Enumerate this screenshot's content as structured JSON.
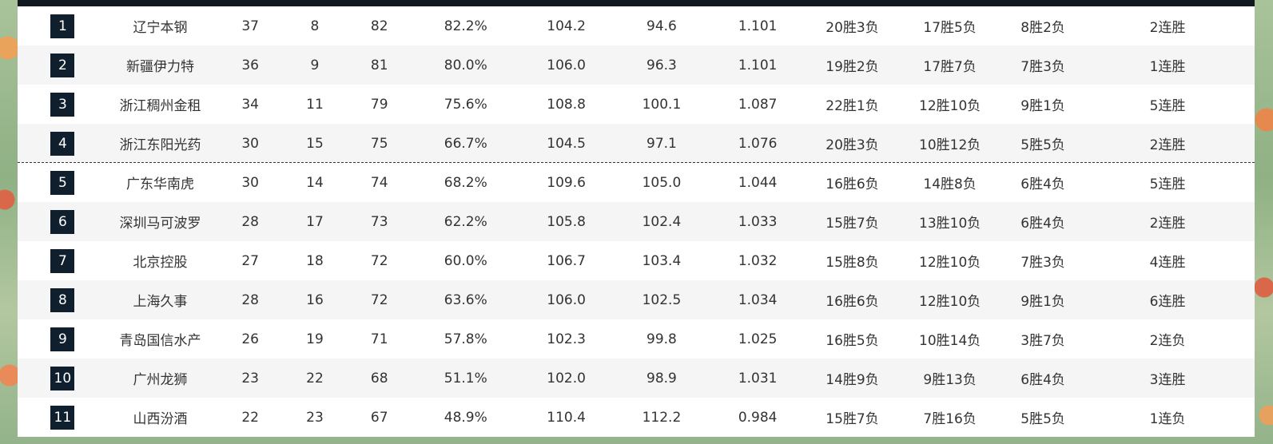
{
  "standings": {
    "rows": [
      {
        "rank": "1",
        "team": "辽宁本钢",
        "wins": "37",
        "losses": "8",
        "points": "82",
        "win_pct": "82.2%",
        "pts_for": "104.2",
        "pts_against": "94.6",
        "ratio": "1.101",
        "home": "20胜3负",
        "away": "17胜5负",
        "last10": "8胜2负",
        "streak": "2连胜"
      },
      {
        "rank": "2",
        "team": "新疆伊力特",
        "wins": "36",
        "losses": "9",
        "points": "81",
        "win_pct": "80.0%",
        "pts_for": "106.0",
        "pts_against": "96.3",
        "ratio": "1.101",
        "home": "19胜2负",
        "away": "17胜7负",
        "last10": "7胜3负",
        "streak": "1连胜"
      },
      {
        "rank": "3",
        "team": "浙江稠州金租",
        "wins": "34",
        "losses": "11",
        "points": "79",
        "win_pct": "75.6%",
        "pts_for": "108.8",
        "pts_against": "100.1",
        "ratio": "1.087",
        "home": "22胜1负",
        "away": "12胜10负",
        "last10": "9胜1负",
        "streak": "5连胜"
      },
      {
        "rank": "4",
        "team": "浙江东阳光药",
        "wins": "30",
        "losses": "15",
        "points": "75",
        "win_pct": "66.7%",
        "pts_for": "104.5",
        "pts_against": "97.1",
        "ratio": "1.076",
        "home": "20胜3负",
        "away": "10胜12负",
        "last10": "5胜5负",
        "streak": "2连胜"
      },
      {
        "rank": "5",
        "team": "广东华南虎",
        "wins": "30",
        "losses": "14",
        "points": "74",
        "win_pct": "68.2%",
        "pts_for": "109.6",
        "pts_against": "105.0",
        "ratio": "1.044",
        "home": "16胜6负",
        "away": "14胜8负",
        "last10": "6胜4负",
        "streak": "5连胜"
      },
      {
        "rank": "6",
        "team": "深圳马可波罗",
        "wins": "28",
        "losses": "17",
        "points": "73",
        "win_pct": "62.2%",
        "pts_for": "105.8",
        "pts_against": "102.4",
        "ratio": "1.033",
        "home": "15胜7负",
        "away": "13胜10负",
        "last10": "6胜4负",
        "streak": "2连胜"
      },
      {
        "rank": "7",
        "team": "北京控股",
        "wins": "27",
        "losses": "18",
        "points": "72",
        "win_pct": "60.0%",
        "pts_for": "106.7",
        "pts_against": "103.4",
        "ratio": "1.032",
        "home": "15胜8负",
        "away": "12胜10负",
        "last10": "7胜3负",
        "streak": "4连胜"
      },
      {
        "rank": "8",
        "team": "上海久事",
        "wins": "28",
        "losses": "16",
        "points": "72",
        "win_pct": "63.6%",
        "pts_for": "106.0",
        "pts_against": "102.5",
        "ratio": "1.034",
        "home": "16胜6负",
        "away": "12胜10负",
        "last10": "9胜1负",
        "streak": "6连胜"
      },
      {
        "rank": "9",
        "team": "青岛国信水产",
        "wins": "26",
        "losses": "19",
        "points": "71",
        "win_pct": "57.8%",
        "pts_for": "102.3",
        "pts_against": "99.8",
        "ratio": "1.025",
        "home": "16胜5负",
        "away": "10胜14负",
        "last10": "3胜7负",
        "streak": "2连负"
      },
      {
        "rank": "10",
        "team": "广州龙狮",
        "wins": "23",
        "losses": "22",
        "points": "68",
        "win_pct": "51.1%",
        "pts_for": "102.0",
        "pts_against": "98.9",
        "ratio": "1.031",
        "home": "14胜9负",
        "away": "9胜13负",
        "last10": "6胜4负",
        "streak": "3连胜"
      },
      {
        "rank": "11",
        "team": "山西汾酒",
        "wins": "22",
        "losses": "23",
        "points": "67",
        "win_pct": "48.9%",
        "pts_for": "110.4",
        "pts_against": "112.2",
        "ratio": "0.984",
        "home": "15胜7负",
        "away": "7胜16负",
        "last10": "5胜5负",
        "streak": "1连负"
      }
    ]
  }
}
